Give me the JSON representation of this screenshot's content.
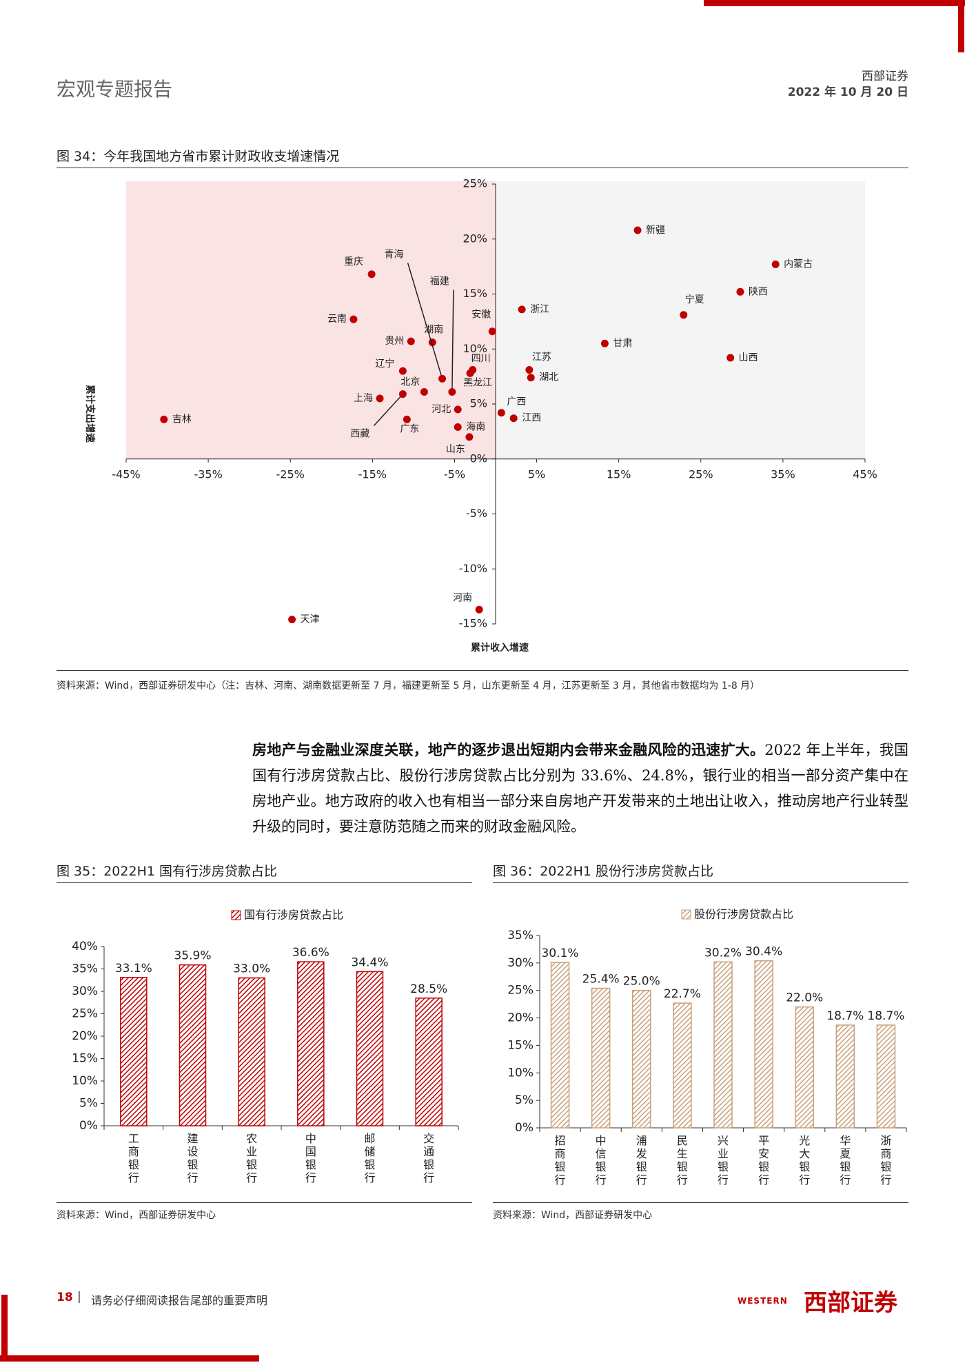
{
  "header": {
    "title": "宏观专题报告",
    "company": "西部证券",
    "date": "2022 年 10 月 20 日"
  },
  "chart_data": [
    {
      "type": "scatter",
      "title": "图 34：今年我国地方省市累计财政收支增速情况",
      "x_label": "累计收入增速",
      "y_label": "累计支出增速",
      "labels": [
        "新疆",
        "内蒙古",
        "陕西",
        "宁夏",
        "浙江",
        "甘肃",
        "山西",
        "重庆",
        "云南",
        "安徽",
        "贵州",
        "湖南",
        "辽宁",
        "四川",
        "黑龙江",
        "青海",
        "福建",
        "北京",
        "西藏",
        "上海",
        "河北",
        "广东",
        "海南",
        "山东",
        "广西",
        "江西",
        "江苏",
        "湖北",
        "吉林",
        "天津",
        "河南"
      ],
      "x": [
        17.3,
        34.1,
        29.8,
        22.9,
        3.2,
        13.3,
        28.6,
        -15.1,
        -17.3,
        -0.4,
        -10.3,
        -7.7,
        -11.3,
        -2.8,
        -3.1,
        -6.5,
        -5.3,
        -8.7,
        -11.3,
        -14.1,
        -4.6,
        -10.8,
        -4.6,
        -3.2,
        0.7,
        2.2,
        4.1,
        4.3,
        -40.4,
        -24.8,
        -2.0
      ],
      "values": [
        20.8,
        17.7,
        15.2,
        13.1,
        13.6,
        10.5,
        9.2,
        16.8,
        12.7,
        11.6,
        10.7,
        10.6,
        8.0,
        8.1,
        7.8,
        7.3,
        6.1,
        6.1,
        5.9,
        5.5,
        4.5,
        3.6,
        2.9,
        2.0,
        4.2,
        3.7,
        8.1,
        7.4,
        3.6,
        -14.6,
        -13.7
      ],
      "color": "#c00000",
      "xlim": [
        -45,
        45
      ],
      "xticks": [
        {
          "value": -45,
          "label": "-45%"
        },
        {
          "value": -35,
          "label": "-35%"
        },
        {
          "value": -25,
          "label": "-25%"
        },
        {
          "value": -15,
          "label": "-15%"
        },
        {
          "value": -5,
          "label": "-5%"
        },
        {
          "value": 5,
          "label": "5%"
        },
        {
          "value": 15,
          "label": "15%"
        },
        {
          "value": 25,
          "label": "25%"
        },
        {
          "value": 35,
          "label": "35%"
        },
        {
          "value": 45,
          "label": "45%"
        }
      ],
      "ylim": [
        -15,
        25
      ],
      "yticks": [
        {
          "value": -15,
          "label": "-15%"
        },
        {
          "value": -10,
          "label": "-10%"
        },
        {
          "value": -5,
          "label": "-5%"
        },
        {
          "value": 0,
          "label": "0%"
        },
        {
          "value": 5,
          "label": "5%"
        },
        {
          "value": 10,
          "label": "10%"
        },
        {
          "value": 15,
          "label": "15%"
        },
        {
          "value": 20,
          "label": "20%"
        },
        {
          "value": 25,
          "label": "25%"
        }
      ],
      "source": "资料来源：Wind，西部证券研发中心（注：吉林、河南、湖南数据更新至 7 月，福建更新至 5 月，山东更新至 4 月，江苏更新至 3 月，其他省市数据均为 1-8 月）"
    },
    {
      "type": "bar",
      "title": "图 35：2022H1 国有行涉房贷款占比",
      "categories": [
        "工商银行",
        "建设银行",
        "农业银行",
        "中国银行",
        "邮储银行",
        "交通银行"
      ],
      "series": [
        {
          "name": "国有行涉房贷款占比",
          "color": "#c00000",
          "values": [
            33.1,
            35.9,
            33.0,
            36.6,
            34.4,
            28.5
          ],
          "value_labels": [
            "33.1%",
            "35.9%",
            "33.0%",
            "36.6%",
            "34.4%",
            "28.5%"
          ]
        }
      ],
      "ylim": [
        0,
        40
      ],
      "yticks": [
        {
          "value": 0,
          "label": "0%"
        },
        {
          "value": 5,
          "label": "5%"
        },
        {
          "value": 10,
          "label": "10%"
        },
        {
          "value": 15,
          "label": "15%"
        },
        {
          "value": 20,
          "label": "20%"
        },
        {
          "value": 25,
          "label": "25%"
        },
        {
          "value": 30,
          "label": "30%"
        },
        {
          "value": 35,
          "label": "35%"
        },
        {
          "value": 40,
          "label": "40%"
        }
      ],
      "source": "资料来源：Wind，西部证券研发中心"
    },
    {
      "type": "bar",
      "title": "图 36：2022H1 股份行涉房贷款占比",
      "categories": [
        "招商银行",
        "中信银行",
        "浦发银行",
        "民生银行",
        "兴业银行",
        "平安银行",
        "光大银行",
        "华夏银行",
        "浙商银行"
      ],
      "series": [
        {
          "name": "股份行涉房贷款占比",
          "color": "#c8a07a",
          "values": [
            30.1,
            25.4,
            25.0,
            22.7,
            30.2,
            30.4,
            22.0,
            18.7,
            18.7
          ],
          "value_labels": [
            "30.1%",
            "25.4%",
            "25.0%",
            "22.7%",
            "30.2%",
            "30.4%",
            "22.0%",
            "18.7%",
            "18.7%"
          ]
        }
      ],
      "ylim": [
        0,
        35
      ],
      "yticks": [
        {
          "value": 0,
          "label": "0%"
        },
        {
          "value": 5,
          "label": "5%"
        },
        {
          "value": 10,
          "label": "10%"
        },
        {
          "value": 15,
          "label": "15%"
        },
        {
          "value": 20,
          "label": "20%"
        },
        {
          "value": 25,
          "label": "25%"
        },
        {
          "value": 30,
          "label": "30%"
        },
        {
          "value": 35,
          "label": "35%"
        }
      ],
      "source": "资料来源：Wind，西部证券研发中心"
    }
  ],
  "paragraph": {
    "lead": "房地产与金融业深度关联，地产的逐步退出短期内会带来金融风险的迅速扩大。",
    "body": "2022 年上半年，我国国有行涉房贷款占比、股份行涉房贷款占比分别为 33.6%、24.8%，银行业的相当一部分资产集中在房地产业。地方政府的收入也有相当一部分来自房地产开发带来的土地出让收入，推动房地产行业转型升级的同时，要注意防范随之而来的财政金融风险。"
  },
  "footer": {
    "page": "18",
    "separator": "|",
    "disclaimer": "请务必仔细阅读报告尾部的重要声明",
    "logo_en": "WESTERN",
    "logo_cn": "西部证券"
  }
}
